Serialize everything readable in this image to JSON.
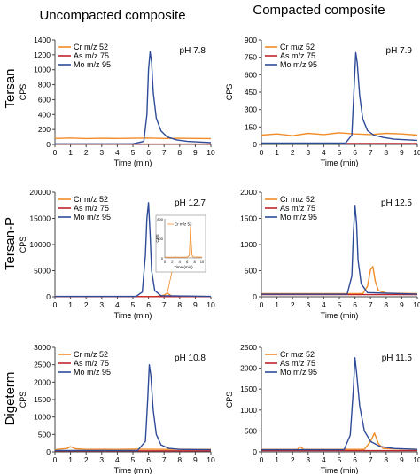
{
  "column_headers": [
    "Uncompacted composite",
    "Compacted composite"
  ],
  "row_labels": [
    "Tersan",
    "Tersan-P",
    "Digeterm"
  ],
  "colors": {
    "Cr": "#F28C28",
    "As": "#C0242B",
    "Mo": "#2E4B99"
  },
  "chart_data": [
    {
      "type": "line",
      "row": 0,
      "col": 0,
      "ph_label": "pH 7.8",
      "xlabel": "Time (min)",
      "ylabel": "CPS",
      "xlim": [
        0,
        10
      ],
      "ylim": [
        0,
        1400
      ],
      "xticks": [
        0,
        1,
        2,
        3,
        4,
        5,
        6,
        7,
        8,
        9,
        10
      ],
      "yticks": [
        0,
        200,
        400,
        600,
        800,
        1000,
        1200,
        1400
      ],
      "legend": [
        "Cr m/z 52",
        "As m/z 75",
        "Mo m/z 95"
      ],
      "series": [
        {
          "name": "Cr m/z 52",
          "color": "#F28C28",
          "x": [
            0,
            1,
            2,
            3,
            4,
            5,
            6,
            7,
            8,
            9,
            10
          ],
          "y": [
            80,
            85,
            78,
            82,
            80,
            82,
            85,
            80,
            82,
            80,
            78
          ]
        },
        {
          "name": "As m/z 75",
          "color": "#C0242B",
          "x": [
            0,
            10
          ],
          "y": [
            5,
            5
          ]
        },
        {
          "name": "Mo m/z 95",
          "color": "#2E4B99",
          "x": [
            0,
            5,
            5.7,
            5.9,
            6.0,
            6.1,
            6.2,
            6.3,
            6.5,
            6.8,
            7.2,
            7.8,
            8.5,
            10
          ],
          "y": [
            8,
            8,
            40,
            400,
            1000,
            1240,
            1100,
            700,
            350,
            180,
            100,
            60,
            40,
            25
          ]
        }
      ]
    },
    {
      "type": "line",
      "row": 0,
      "col": 1,
      "ph_label": "pH 7.9",
      "xlabel": "Time (min)",
      "ylabel": "CPS",
      "xlim": [
        0,
        10
      ],
      "ylim": [
        0,
        900
      ],
      "xticks": [
        0,
        1,
        2,
        3,
        4,
        5,
        6,
        7,
        8,
        9,
        10
      ],
      "yticks": [
        0,
        150,
        300,
        450,
        600,
        750,
        900
      ],
      "legend": [
        "Cr m/z 52",
        "As m/z 75",
        "Mo m/z 95"
      ],
      "series": [
        {
          "name": "Cr m/z 52",
          "color": "#F28C28",
          "x": [
            0,
            1,
            2,
            3,
            4,
            5,
            6,
            7,
            8,
            9,
            10
          ],
          "y": [
            80,
            90,
            75,
            95,
            85,
            100,
            90,
            85,
            95,
            90,
            80
          ]
        },
        {
          "name": "As m/z 75",
          "color": "#C0242B",
          "x": [
            0,
            10
          ],
          "y": [
            8,
            8
          ]
        },
        {
          "name": "Mo m/z 95",
          "color": "#2E4B99",
          "x": [
            0,
            5.4,
            5.8,
            5.95,
            6.05,
            6.15,
            6.3,
            6.5,
            6.8,
            7.2,
            7.8,
            8.5,
            10
          ],
          "y": [
            12,
            12,
            80,
            500,
            790,
            700,
            420,
            220,
            120,
            80,
            60,
            45,
            35
          ]
        }
      ]
    },
    {
      "type": "line",
      "row": 1,
      "col": 0,
      "ph_label": "pH 12.7",
      "xlabel": "Time (min)",
      "ylabel": "CPS",
      "xlim": [
        0,
        10
      ],
      "ylim": [
        0,
        20000
      ],
      "xticks": [
        0,
        1,
        2,
        3,
        4,
        5,
        6,
        7,
        8,
        9,
        10
      ],
      "yticks": [
        0,
        5000,
        10000,
        15000,
        20000
      ],
      "legend": [
        "Cr m/z 52",
        "As m/z 75",
        "Mo m/z 95"
      ],
      "inset": {
        "label": "Cr m/z 52",
        "xlabel": "Time (min)",
        "ylabel": "CPS",
        "xlim": [
          0,
          10
        ],
        "ylim": [
          0,
          800
        ],
        "xticks": [
          0,
          2,
          4,
          6,
          8,
          10
        ],
        "yticks": [
          0,
          400,
          800
        ],
        "x": [
          0,
          6,
          6.6,
          6.9,
          7.1,
          7.3,
          7.6,
          10
        ],
        "y": [
          15,
          15,
          50,
          650,
          300,
          60,
          20,
          15
        ]
      },
      "series": [
        {
          "name": "Cr m/z 52",
          "color": "#F28C28",
          "x": [
            0,
            6.5,
            7,
            7.2,
            7.5,
            10
          ],
          "y": [
            50,
            50,
            300,
            700,
            120,
            50
          ]
        },
        {
          "name": "As m/z 75",
          "color": "#C0242B",
          "x": [
            0,
            10
          ],
          "y": [
            30,
            30
          ]
        },
        {
          "name": "Mo m/z 95",
          "color": "#2E4B99",
          "x": [
            0,
            5.2,
            5.6,
            5.8,
            5.9,
            6.0,
            6.1,
            6.2,
            6.4,
            6.8,
            10
          ],
          "y": [
            60,
            60,
            900,
            8000,
            15000,
            18000,
            12000,
            5000,
            1200,
            200,
            60
          ]
        }
      ]
    },
    {
      "type": "line",
      "row": 1,
      "col": 1,
      "ph_label": "pH 12.5",
      "xlabel": "Time (min)",
      "ylabel": "",
      "xlim": [
        0,
        10
      ],
      "ylim": [
        0,
        2000
      ],
      "xticks": [
        0,
        1,
        2,
        3,
        4,
        5,
        6,
        7,
        8,
        9,
        10
      ],
      "yticks": [
        0,
        500,
        1000,
        1500,
        2000
      ],
      "legend": [
        "Cr m/z 52",
        "As m/z 75",
        "Mo m/z 95"
      ],
      "series": [
        {
          "name": "Cr m/z 52",
          "color": "#F28C28",
          "x": [
            0,
            6.5,
            6.8,
            7.0,
            7.15,
            7.3,
            7.5,
            8,
            10
          ],
          "y": [
            60,
            60,
            200,
            520,
            580,
            300,
            120,
            70,
            60
          ]
        },
        {
          "name": "As m/z 75",
          "color": "#C0242B",
          "x": [
            0,
            10
          ],
          "y": [
            40,
            40
          ]
        },
        {
          "name": "Mo m/z 95",
          "color": "#2E4B99",
          "x": [
            0,
            5.5,
            5.8,
            5.9,
            6.0,
            6.1,
            6.2,
            6.4,
            6.8,
            10
          ],
          "y": [
            50,
            50,
            400,
            1200,
            1750,
            1400,
            700,
            250,
            80,
            50
          ]
        }
      ]
    },
    {
      "type": "line",
      "row": 2,
      "col": 0,
      "ph_label": "pH 10.8",
      "xlabel": "Time (min)",
      "ylabel": "CPS",
      "xlim": [
        0,
        10
      ],
      "ylim": [
        0,
        3000
      ],
      "xticks": [
        0,
        1,
        2,
        3,
        4,
        5,
        6,
        7,
        8,
        9,
        10
      ],
      "yticks": [
        0,
        500,
        1000,
        1500,
        2000,
        2500,
        3000
      ],
      "legend": [
        "Cr m/z 52",
        "As m/z 75",
        "Mo m/z 95"
      ],
      "series": [
        {
          "name": "Cr m/z 52",
          "color": "#F28C28",
          "x": [
            0,
            0.8,
            1.0,
            1.3,
            2,
            3,
            4,
            5,
            6,
            7,
            8,
            9,
            10
          ],
          "y": [
            60,
            100,
            150,
            90,
            70,
            75,
            70,
            80,
            75,
            70,
            75,
            70,
            70
          ]
        },
        {
          "name": "As m/z 75",
          "color": "#C0242B",
          "x": [
            0,
            10
          ],
          "y": [
            30,
            30
          ]
        },
        {
          "name": "Mo m/z 95",
          "color": "#2E4B99",
          "x": [
            0,
            5.3,
            5.8,
            5.95,
            6.05,
            6.15,
            6.3,
            6.5,
            6.8,
            7.3,
            8,
            10
          ],
          "y": [
            40,
            40,
            300,
            1500,
            2500,
            2200,
            1200,
            500,
            200,
            100,
            70,
            60
          ]
        }
      ]
    },
    {
      "type": "line",
      "row": 2,
      "col": 1,
      "ph_label": "pH 11.5",
      "xlabel": "Time (min)",
      "ylabel": "CPS",
      "xlim": [
        0,
        10
      ],
      "ylim": [
        0,
        2500
      ],
      "xticks": [
        0,
        1,
        2,
        3,
        4,
        5,
        6,
        7,
        8,
        9,
        10
      ],
      "yticks": [
        0,
        500,
        1000,
        1500,
        2000,
        2500
      ],
      "legend": [
        "Cr m/z 52",
        "As m/z 75",
        "Mo m/z 95"
      ],
      "series": [
        {
          "name": "Cr m/z 52",
          "color": "#F28C28",
          "x": [
            0,
            2.3,
            2.5,
            2.7,
            6.6,
            7.0,
            7.25,
            7.5,
            7.8,
            10
          ],
          "y": [
            60,
            60,
            120,
            60,
            60,
            250,
            450,
            200,
            80,
            60
          ]
        },
        {
          "name": "As m/z 75",
          "color": "#C0242B",
          "x": [
            0,
            10
          ],
          "y": [
            30,
            30
          ]
        },
        {
          "name": "Mo m/z 95",
          "color": "#2E4B99",
          "x": [
            0,
            5.3,
            5.7,
            5.9,
            6.0,
            6.1,
            6.3,
            6.6,
            7.0,
            7.6,
            8.5,
            10
          ],
          "y": [
            50,
            50,
            400,
            1500,
            2250,
            1900,
            1100,
            500,
            250,
            130,
            80,
            60
          ]
        }
      ]
    }
  ]
}
